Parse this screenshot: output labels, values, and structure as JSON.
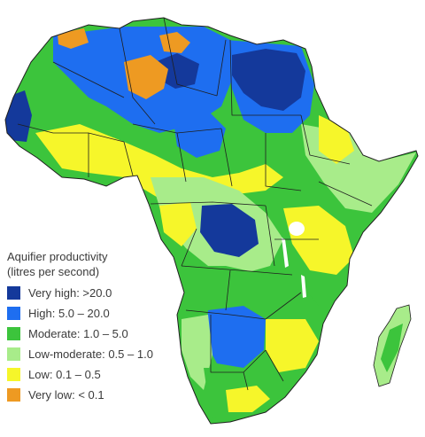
{
  "legend": {
    "title_line1": "Aquifier productivity",
    "title_line2": "(litres per second)",
    "items": [
      {
        "label": "Very high: >20.0",
        "color": "#14399b"
      },
      {
        "label": "High: 5.0 – 20.0",
        "color": "#1e6ef0"
      },
      {
        "label": "Moderate: 1.0 – 5.0",
        "color": "#3cc43c"
      },
      {
        "label": "Low-moderate: 0.5 – 1.0",
        "color": "#a8ec8a"
      },
      {
        "label": "Low: 0.1 – 0.5",
        "color": "#f6f62a"
      },
      {
        "label": "Very low: < 0.1",
        "color": "#ee9a22"
      }
    ]
  },
  "colors": {
    "background": "#ffffff",
    "border": "#1f1f1f",
    "lake": "#ffffff"
  }
}
